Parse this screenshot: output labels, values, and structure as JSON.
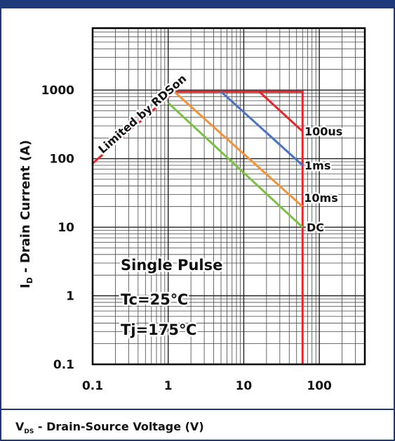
{
  "chart_data": {
    "type": "line",
    "scale": "log-log",
    "xlabel": {
      "main": "V",
      "sub": "DS",
      "rest": " - Drain-Source Voltage (V)"
    },
    "ylabel": {
      "main": "I",
      "sub": "D",
      "rest": " - Drain Current (A)"
    },
    "xlim": [
      0.1,
      400
    ],
    "ylim": [
      0.1,
      8000
    ],
    "x_ticks": [
      0.1,
      1,
      10,
      100
    ],
    "x_tick_labels": [
      "0.1",
      "1",
      "10",
      "100"
    ],
    "y_ticks": [
      0.1,
      1,
      10,
      100,
      1000
    ],
    "y_tick_labels": [
      "0.1",
      "1",
      "10",
      "100",
      "1000"
    ],
    "grid": true,
    "series": [
      {
        "name": "Limited by RDSon",
        "color": "#e8232a",
        "points": [
          [
            0.1,
            85
          ],
          [
            1.2,
            950
          ]
        ]
      },
      {
        "name": "100us",
        "color": "#e8232a",
        "points": [
          [
            1.2,
            950
          ],
          [
            60,
            950
          ],
          [
            60,
            0.1
          ]
        ],
        "extra": [
          [
            16,
            950
          ],
          [
            60,
            250
          ]
        ]
      },
      {
        "name": "1ms",
        "color": "#4a72c4",
        "points": [
          [
            5,
            950
          ],
          [
            60,
            80
          ]
        ]
      },
      {
        "name": "10ms",
        "color": "#f39237",
        "points": [
          [
            1.2,
            950
          ],
          [
            60,
            20
          ]
        ]
      },
      {
        "name": "DC",
        "color": "#7ac143",
        "points": [
          [
            1,
            650
          ],
          [
            60,
            10
          ]
        ]
      }
    ],
    "curve_labels": [
      {
        "text": "100us",
        "x": 61,
        "y": 250
      },
      {
        "text": "1ms",
        "x": 61,
        "y": 80
      },
      {
        "text": "10ms",
        "x": 60,
        "y": 27
      },
      {
        "text": "DC",
        "x": 65,
        "y": 10
      }
    ],
    "rdson_label": "Limited by RDSon",
    "annotations": [
      "Single Pulse",
      "Tc=25℃",
      "Tj=175℃"
    ]
  }
}
